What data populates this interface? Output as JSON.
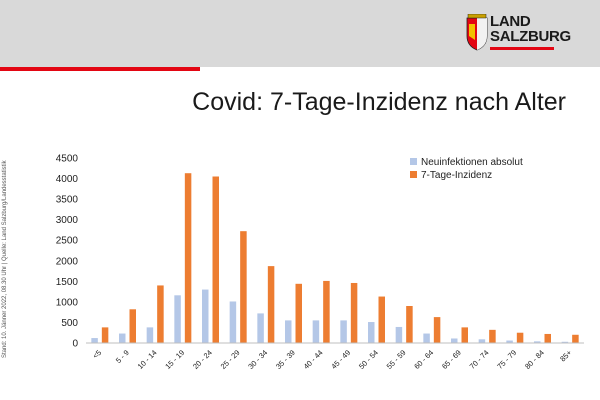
{
  "header": {
    "logo_line1": "LAND",
    "logo_line2": "SALZBURG",
    "band_color": "#d9d9d9",
    "accent_color": "#e30613",
    "logo_icon": "salzburg-coat-of-arms-icon"
  },
  "side_note": "Stand: 10. Jänner 2022, 08.30 Uhr | Quelle: Land Salzburg/Landesstatistik",
  "chart_data": {
    "type": "bar",
    "title": "Covid: 7-Tage-Inzidenz nach Alter",
    "xlabel": "",
    "ylabel": "",
    "ylim": [
      0,
      4500
    ],
    "yticks": [
      0,
      500,
      1000,
      1500,
      2000,
      2500,
      3000,
      3500,
      4000,
      4500
    ],
    "grid": false,
    "legend_position": "top-right",
    "categories": [
      "<5",
      "5 - 9",
      "10 - 14",
      "15 - 19",
      "20 - 24",
      "25 - 29",
      "30 - 34",
      "35 - 39",
      "40 - 44",
      "45 - 49",
      "50 - 54",
      "55 - 59",
      "60 - 64",
      "65 - 69",
      "70 - 74",
      "75 - 79",
      "80 - 84",
      "85+"
    ],
    "series": [
      {
        "name": "Neuinfektionen absolut",
        "color": "#b4c7e7",
        "values": [
          120,
          230,
          380,
          1160,
          1300,
          1010,
          720,
          550,
          550,
          550,
          510,
          390,
          230,
          110,
          90,
          60,
          40,
          30
        ]
      },
      {
        "name": "7-Tage-Inzidenz",
        "color": "#ed7d31",
        "values": [
          380,
          820,
          1400,
          4130,
          4050,
          2720,
          1870,
          1440,
          1510,
          1460,
          1130,
          900,
          630,
          380,
          320,
          250,
          220,
          200
        ]
      }
    ]
  }
}
